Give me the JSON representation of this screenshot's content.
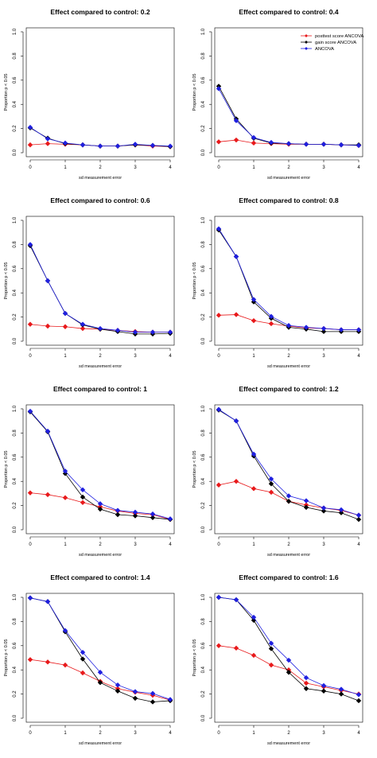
{
  "colors": {
    "posttest": "#e8191b",
    "gain": "#000000",
    "ancova": "#1f1fe0"
  },
  "chart_data": [
    {
      "type": "line",
      "title": "Effect compared to control: 0.2",
      "xlabel": "sd measurement error",
      "ylabel": "Proportion p < 0.05",
      "xlim": [
        0,
        4
      ],
      "ylim": [
        0,
        1
      ],
      "grid": false,
      "x": [
        0,
        0.5,
        1,
        1.5,
        2,
        2.5,
        3,
        3.5,
        4
      ],
      "x_ticks": [
        "0",
        "1",
        "2",
        "3",
        "4"
      ],
      "y_ticks": [
        "0.0",
        "0.2",
        "0.4",
        "0.6",
        "0.8",
        "1.0"
      ],
      "series": [
        {
          "name": "posttest score ANCOVA",
          "values": [
            0.065,
            0.075,
            0.07,
            0.065,
            0.055,
            0.055,
            0.065,
            0.055,
            0.05
          ]
        },
        {
          "name": "gain score ANCOVA",
          "values": [
            0.205,
            0.12,
            0.075,
            0.065,
            0.055,
            0.055,
            0.065,
            0.06,
            0.05
          ]
        },
        {
          "name": "ANCOVA",
          "values": [
            0.21,
            0.115,
            0.08,
            0.065,
            0.055,
            0.055,
            0.07,
            0.06,
            0.055
          ]
        }
      ]
    },
    {
      "type": "line",
      "title": "Effect compared to control: 0.4",
      "xlabel": "sd measurement error",
      "ylabel": "Proportion p < 0.05",
      "xlim": [
        0,
        4
      ],
      "ylim": [
        0,
        1
      ],
      "grid": false,
      "x": [
        0,
        0.5,
        1,
        1.5,
        2,
        2.5,
        3,
        3.5,
        4
      ],
      "x_ticks": [
        "0",
        "1",
        "2",
        "3",
        "4"
      ],
      "y_ticks": [
        "0.0",
        "0.2",
        "0.4",
        "0.6",
        "0.8",
        "1.0"
      ],
      "legend": {
        "position": "top-right",
        "entries": [
          "posttest score ANCOVA",
          "gain score ANCOVA",
          "ANCOVA"
        ]
      },
      "series": [
        {
          "name": "posttest score ANCOVA",
          "values": [
            0.09,
            0.105,
            0.08,
            0.075,
            0.07,
            0.07,
            0.07,
            0.065,
            0.06
          ]
        },
        {
          "name": "gain score ANCOVA",
          "values": [
            0.55,
            0.28,
            0.12,
            0.08,
            0.075,
            0.07,
            0.07,
            0.065,
            0.065
          ]
        },
        {
          "name": "ANCOVA",
          "values": [
            0.53,
            0.265,
            0.125,
            0.085,
            0.075,
            0.07,
            0.07,
            0.065,
            0.06
          ]
        }
      ]
    },
    {
      "type": "line",
      "title": "Effect compared to control: 0.6",
      "xlabel": "sd measurement error",
      "ylabel": "Proportion p < 0.05",
      "xlim": [
        0,
        4
      ],
      "ylim": [
        0,
        1
      ],
      "grid": false,
      "x": [
        0,
        0.5,
        1,
        1.5,
        2,
        2.5,
        3,
        3.5,
        4
      ],
      "x_ticks": [
        "0",
        "1",
        "2",
        "3",
        "4"
      ],
      "y_ticks": [
        "0.0",
        "0.2",
        "0.4",
        "0.6",
        "0.8",
        "1.0"
      ],
      "series": [
        {
          "name": "posttest score ANCOVA",
          "values": [
            0.14,
            0.125,
            0.12,
            0.105,
            0.1,
            0.09,
            0.08,
            0.075,
            0.075
          ]
        },
        {
          "name": "gain score ANCOVA",
          "values": [
            0.79,
            0.5,
            0.23,
            0.135,
            0.1,
            0.08,
            0.06,
            0.06,
            0.065
          ]
        },
        {
          "name": "ANCOVA",
          "values": [
            0.8,
            0.5,
            0.23,
            0.14,
            0.105,
            0.09,
            0.075,
            0.075,
            0.075
          ]
        }
      ]
    },
    {
      "type": "line",
      "title": "Effect compared to control: 0.8",
      "xlabel": "sd measurement error",
      "ylabel": "Proportion p < 0.05",
      "xlim": [
        0,
        4
      ],
      "ylim": [
        0,
        1
      ],
      "grid": false,
      "x": [
        0,
        0.5,
        1,
        1.5,
        2,
        2.5,
        3,
        3.5,
        4
      ],
      "x_ticks": [
        "0",
        "1",
        "2",
        "3",
        "4"
      ],
      "y_ticks": [
        "0.0",
        "0.2",
        "0.4",
        "0.6",
        "0.8",
        "1.0"
      ],
      "series": [
        {
          "name": "posttest score ANCOVA",
          "values": [
            0.215,
            0.22,
            0.17,
            0.145,
            0.125,
            0.11,
            0.105,
            0.095,
            0.095
          ]
        },
        {
          "name": "gain score ANCOVA",
          "values": [
            0.92,
            0.7,
            0.325,
            0.19,
            0.115,
            0.1,
            0.08,
            0.08,
            0.08
          ]
        },
        {
          "name": "ANCOVA",
          "values": [
            0.93,
            0.7,
            0.345,
            0.205,
            0.13,
            0.115,
            0.105,
            0.095,
            0.095
          ]
        }
      ]
    },
    {
      "type": "line",
      "title": "Effect compared to control: 1",
      "xlabel": "sd measurement error",
      "ylabel": "Proportion p < 0.05",
      "xlim": [
        0,
        4
      ],
      "ylim": [
        0,
        1
      ],
      "grid": false,
      "x": [
        0,
        0.5,
        1,
        1.5,
        2,
        2.5,
        3,
        3.5,
        4
      ],
      "x_ticks": [
        "0",
        "1",
        "2",
        "3",
        "4"
      ],
      "y_ticks": [
        "0.0",
        "0.2",
        "0.4",
        "0.6",
        "0.8",
        "1.0"
      ],
      "series": [
        {
          "name": "posttest score ANCOVA",
          "values": [
            0.305,
            0.29,
            0.265,
            0.225,
            0.19,
            0.155,
            0.135,
            0.125,
            0.085
          ]
        },
        {
          "name": "gain score ANCOVA",
          "values": [
            0.975,
            0.81,
            0.465,
            0.27,
            0.17,
            0.125,
            0.115,
            0.1,
            0.085
          ]
        },
        {
          "name": "ANCOVA",
          "values": [
            0.98,
            0.815,
            0.485,
            0.33,
            0.215,
            0.16,
            0.145,
            0.13,
            0.09
          ]
        }
      ]
    },
    {
      "type": "line",
      "title": "Effect compared to control: 1.2",
      "xlabel": "sd measurement error",
      "ylabel": "Proportion p < 0.05",
      "xlim": [
        0,
        4
      ],
      "ylim": [
        0,
        1
      ],
      "grid": false,
      "x": [
        0,
        0.5,
        1,
        1.5,
        2,
        2.5,
        3,
        3.5,
        4
      ],
      "x_ticks": [
        "0",
        "1",
        "2",
        "3",
        "4"
      ],
      "y_ticks": [
        "0.0",
        "0.2",
        "0.4",
        "0.6",
        "0.8",
        "1.0"
      ],
      "series": [
        {
          "name": "posttest score ANCOVA",
          "values": [
            0.37,
            0.4,
            0.34,
            0.31,
            0.235,
            0.205,
            0.18,
            0.16,
            0.12
          ]
        },
        {
          "name": "gain score ANCOVA",
          "values": [
            0.99,
            0.9,
            0.61,
            0.38,
            0.235,
            0.185,
            0.155,
            0.14,
            0.085
          ]
        },
        {
          "name": "ANCOVA",
          "values": [
            0.995,
            0.9,
            0.625,
            0.42,
            0.28,
            0.24,
            0.18,
            0.165,
            0.12
          ]
        }
      ]
    },
    {
      "type": "line",
      "title": "Effect compared to control: 1.4",
      "xlabel": "sd measurement error",
      "ylabel": "Proportion p < 0.05",
      "xlim": [
        0,
        4
      ],
      "ylim": [
        0,
        1
      ],
      "grid": false,
      "x": [
        0,
        0.5,
        1,
        1.5,
        2,
        2.5,
        3,
        3.5,
        4
      ],
      "x_ticks": [
        "0",
        "1",
        "2",
        "3",
        "4"
      ],
      "y_ticks": [
        "0.0",
        "0.2",
        "0.4",
        "0.6",
        "0.8",
        "1.0"
      ],
      "series": [
        {
          "name": "posttest score ANCOVA",
          "values": [
            0.485,
            0.465,
            0.44,
            0.375,
            0.305,
            0.245,
            0.215,
            0.19,
            0.15
          ]
        },
        {
          "name": "gain score ANCOVA",
          "values": [
            0.995,
            0.965,
            0.715,
            0.49,
            0.295,
            0.225,
            0.165,
            0.135,
            0.145
          ]
        },
        {
          "name": "ANCOVA",
          "values": [
            0.995,
            0.965,
            0.725,
            0.545,
            0.38,
            0.275,
            0.22,
            0.205,
            0.155
          ]
        }
      ]
    },
    {
      "type": "line",
      "title": "Effect compared to control: 1.6",
      "xlabel": "sd measurement error",
      "ylabel": "Proportion p < 0.05",
      "xlim": [
        0,
        4
      ],
      "ylim": [
        0,
        1
      ],
      "grid": false,
      "x": [
        0,
        0.5,
        1,
        1.5,
        2,
        2.5,
        3,
        3.5,
        4
      ],
      "x_ticks": [
        "0",
        "1",
        "2",
        "3",
        "4"
      ],
      "y_ticks": [
        "0.0",
        "0.2",
        "0.4",
        "0.6",
        "0.8",
        "1.0"
      ],
      "series": [
        {
          "name": "posttest score ANCOVA",
          "values": [
            0.6,
            0.58,
            0.52,
            0.44,
            0.4,
            0.29,
            0.26,
            0.23,
            0.2
          ]
        },
        {
          "name": "gain score ANCOVA",
          "values": [
            1.0,
            0.98,
            0.81,
            0.575,
            0.38,
            0.245,
            0.225,
            0.2,
            0.145
          ]
        },
        {
          "name": "ANCOVA",
          "values": [
            1.0,
            0.98,
            0.835,
            0.62,
            0.48,
            0.335,
            0.27,
            0.24,
            0.195
          ]
        }
      ]
    }
  ]
}
